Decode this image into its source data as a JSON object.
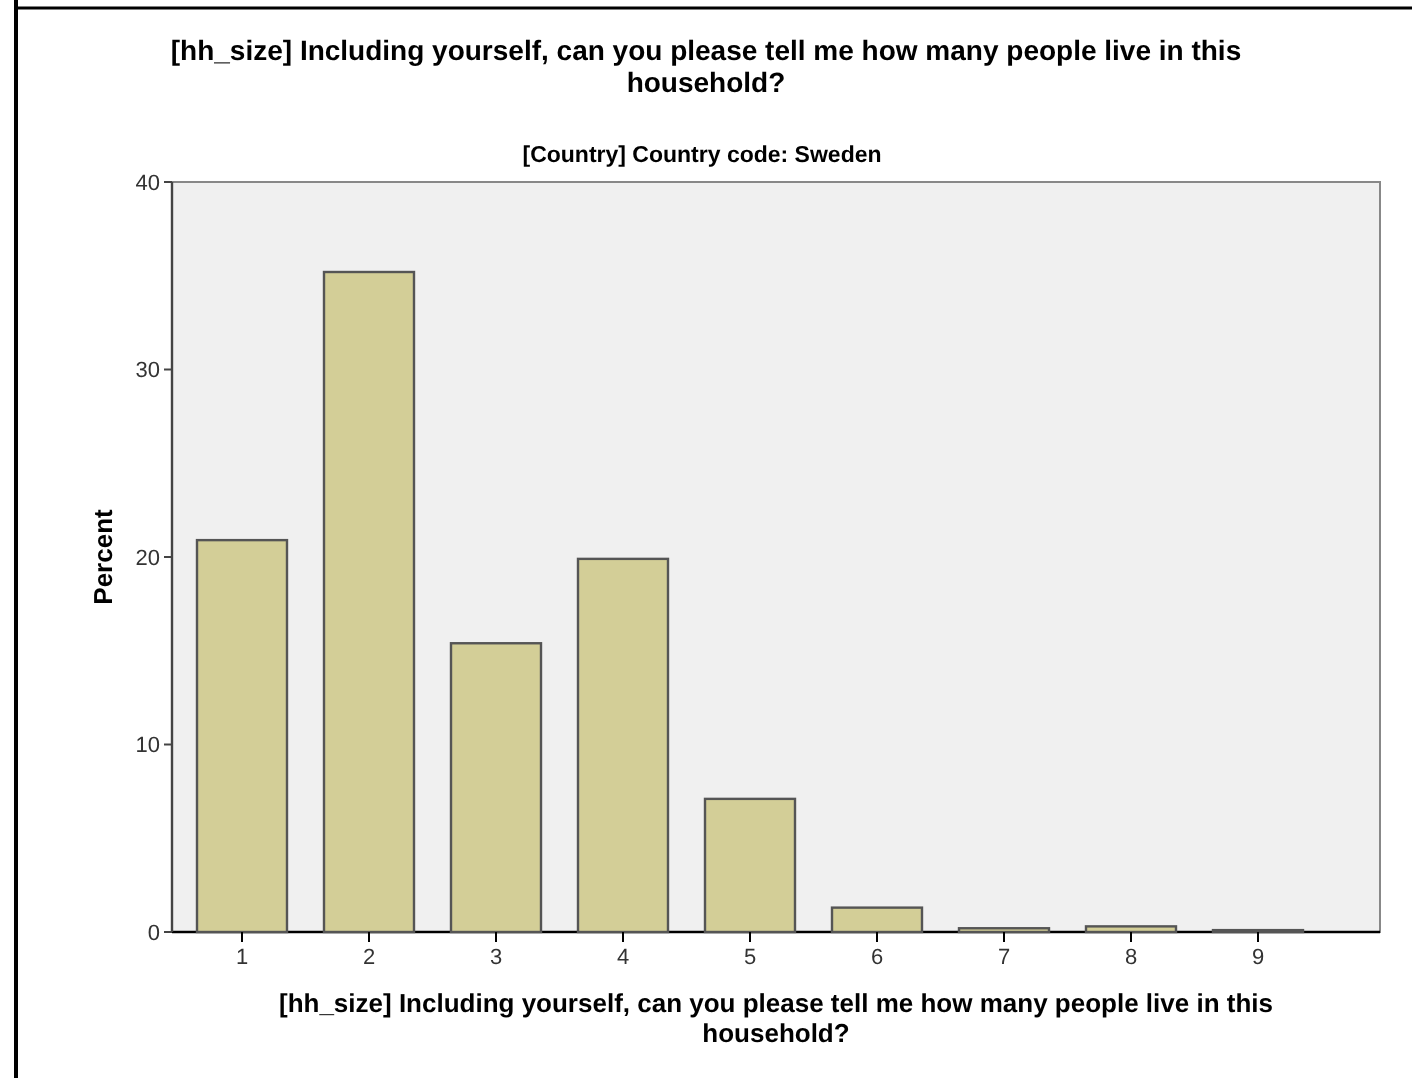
{
  "chart_data": {
    "type": "bar",
    "title": "[hh_size] Including yourself, can you please tell me how many people live in this household?",
    "subtitle": "[Country] Country code: Sweden",
    "xlabel": "[hh_size] Including yourself, can you please tell me how many people live in this household?",
    "ylabel": "Percent",
    "categories": [
      "1",
      "2",
      "3",
      "4",
      "5",
      "6",
      "7",
      "8",
      "9"
    ],
    "values": [
      20.9,
      35.2,
      15.4,
      19.9,
      7.1,
      1.3,
      0.2,
      0.3,
      0.1
    ],
    "color": "#d3ce97",
    "ylim": [
      0,
      40
    ],
    "yticks": [
      0,
      10,
      20,
      30,
      40
    ],
    "grid": false
  }
}
